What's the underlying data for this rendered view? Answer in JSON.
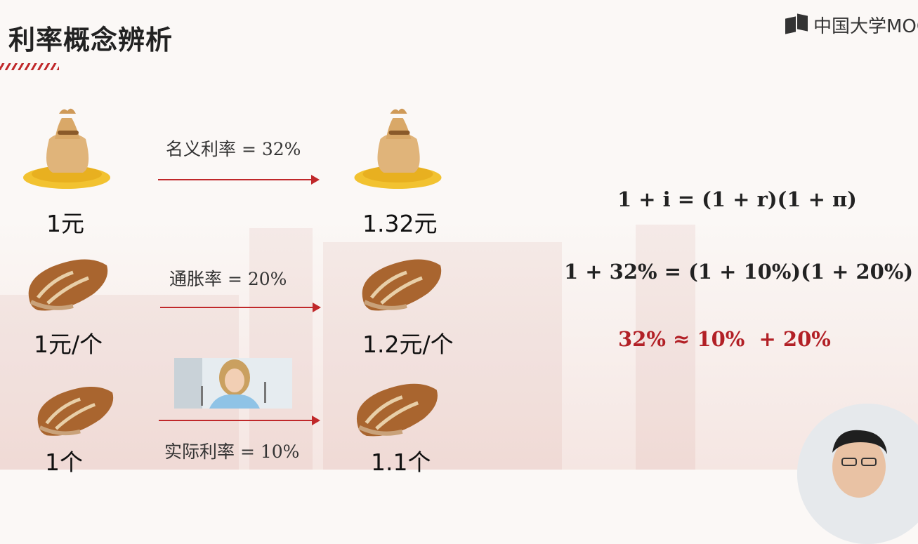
{
  "slide": {
    "title": "利率概念辨析",
    "logo_text": "中国大学MOOC"
  },
  "rows": [
    {
      "left_label": "1元",
      "rate_label": "名义利率 = 32%",
      "right_label": "1.32元"
    },
    {
      "left_label": "1元/个",
      "rate_label": "通胀率 = 20%",
      "right_label": "1.2元/个"
    },
    {
      "left_label": "1个",
      "rate_label": "实际利率 = 10%",
      "right_label": "1.1个"
    }
  ],
  "equations": {
    "general": "1 + i = (1 + r)(1 + π)",
    "numeric": "1 + 32% = (1 + 10%)(1 + 20%)",
    "approx": "32% ≈ 10%  + 20%"
  },
  "colors": {
    "accent_red": "#b22026",
    "arrow_red": "#c0282a"
  },
  "icons": [
    "money-bag-icon",
    "bread-icon",
    "girl-eating-photo",
    "presenter-video"
  ]
}
